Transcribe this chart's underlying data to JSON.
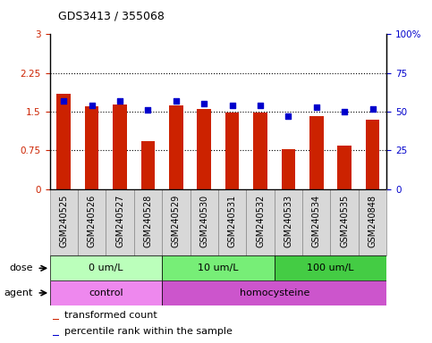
{
  "title": "GDS3413 / 355068",
  "samples": [
    "GSM240525",
    "GSM240526",
    "GSM240527",
    "GSM240528",
    "GSM240529",
    "GSM240530",
    "GSM240531",
    "GSM240532",
    "GSM240533",
    "GSM240534",
    "GSM240535",
    "GSM240848"
  ],
  "transformed_count": [
    1.85,
    1.6,
    1.63,
    0.93,
    1.62,
    1.55,
    1.48,
    1.49,
    0.78,
    1.42,
    0.85,
    1.35
  ],
  "percentile_rank": [
    57,
    54,
    57,
    51,
    57,
    55,
    54,
    54,
    47,
    53,
    50,
    52
  ],
  "bar_color": "#cc2200",
  "dot_color": "#0000cc",
  "ylim_left": [
    0,
    3
  ],
  "ylim_right": [
    0,
    100
  ],
  "yticks_left": [
    0,
    0.75,
    1.5,
    2.25,
    3
  ],
  "yticks_right": [
    0,
    25,
    50,
    75,
    100
  ],
  "ytick_labels_left": [
    "0",
    "0.75",
    "1.5",
    "2.25",
    "3"
  ],
  "ytick_labels_right": [
    "0",
    "25",
    "50",
    "75",
    "100%"
  ],
  "dose_groups": [
    {
      "label": "0 um/L",
      "start": 0,
      "end": 4,
      "color": "#bbffbb"
    },
    {
      "label": "10 um/L",
      "start": 4,
      "end": 8,
      "color": "#77ee77"
    },
    {
      "label": "100 um/L",
      "start": 8,
      "end": 12,
      "color": "#44cc44"
    }
  ],
  "agent_groups": [
    {
      "label": "control",
      "start": 0,
      "end": 4,
      "color": "#ee88ee"
    },
    {
      "label": "homocysteine",
      "start": 4,
      "end": 12,
      "color": "#cc55cc"
    }
  ],
  "dose_label": "dose",
  "agent_label": "agent",
  "legend_bar_label": "transformed count",
  "legend_dot_label": "percentile rank within the sample",
  "panel_bg": "#d8d8d8",
  "plot_bg": "#ffffff",
  "border_color": "#888888"
}
